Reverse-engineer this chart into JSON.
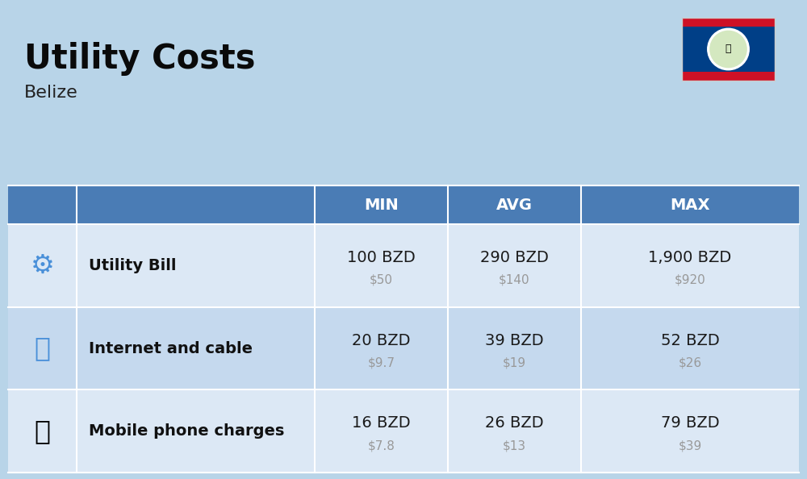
{
  "title": "Utility Costs",
  "subtitle": "Belize",
  "background_color": "#b8d4e8",
  "header_bg_color": "#4a7cb5",
  "header_text_color": "#ffffff",
  "row_bg_colors": [
    "#dce8f5",
    "#c5d9ee"
  ],
  "row_label_color": "#111111",
  "value_color": "#1a1a1a",
  "usd_color": "#999999",
  "header_labels": [
    "",
    "",
    "MIN",
    "AVG",
    "MAX"
  ],
  "rows": [
    {
      "label": "Utility Bill",
      "min_bzd": "100 BZD",
      "min_usd": "$50",
      "avg_bzd": "290 BZD",
      "avg_usd": "$140",
      "max_bzd": "1,900 BZD",
      "max_usd": "$920"
    },
    {
      "label": "Internet and cable",
      "min_bzd": "20 BZD",
      "min_usd": "$9.7",
      "avg_bzd": "39 BZD",
      "avg_usd": "$19",
      "max_bzd": "52 BZD",
      "max_usd": "$26"
    },
    {
      "label": "Mobile phone charges",
      "min_bzd": "16 BZD",
      "min_usd": "$7.8",
      "avg_bzd": "26 BZD",
      "avg_usd": "$13",
      "max_bzd": "79 BZD",
      "max_usd": "$39"
    }
  ],
  "flag_blue": "#003f87",
  "flag_red": "#ce1126",
  "divider_color": "#ffffff",
  "title_color": "#0a0a0a",
  "subtitle_color": "#222222"
}
